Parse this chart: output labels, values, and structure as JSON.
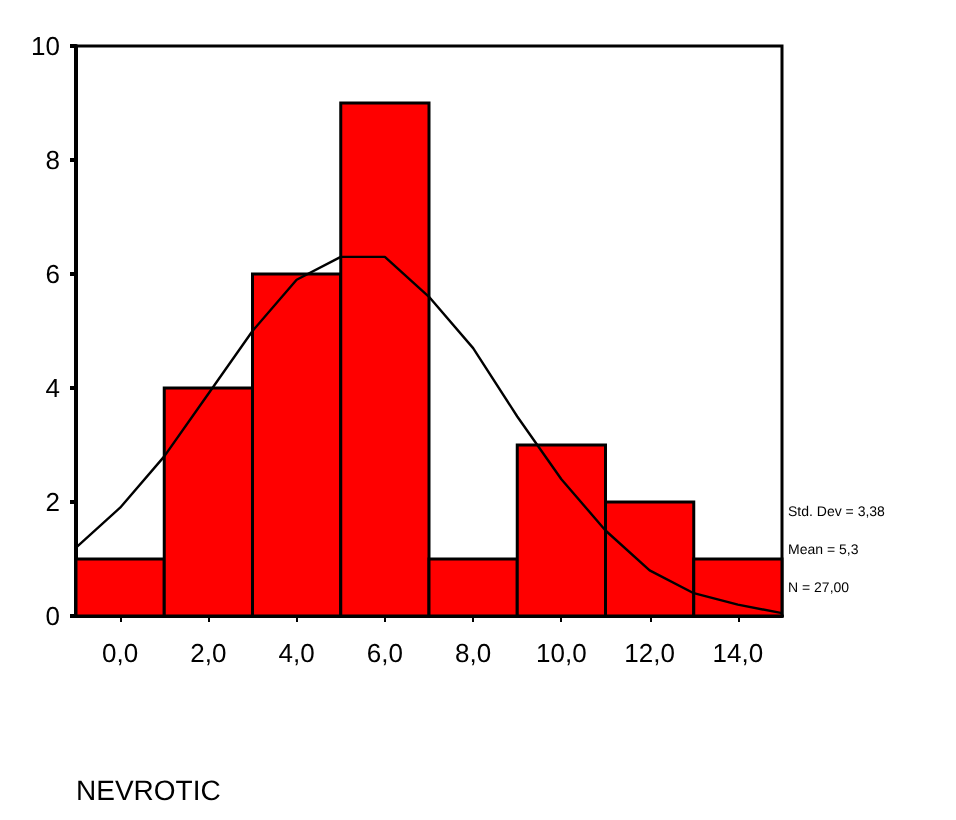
{
  "chart_data": {
    "type": "histogram",
    "xlabel": "NEVROTIC",
    "bins": [
      -1,
      1,
      3,
      5,
      7,
      9,
      11,
      13,
      15
    ],
    "values": [
      1,
      4,
      6,
      9,
      1,
      3,
      2,
      1
    ],
    "color": "#ff0000",
    "series": [
      {
        "type": "line",
        "color": "#000000",
        "x": [
          -1,
          0,
          1,
          2,
          3,
          4,
          5,
          6,
          7,
          8,
          9,
          10,
          11,
          12,
          13,
          14,
          15
        ],
        "values": [
          1.2,
          1.9,
          2.8,
          3.9,
          5.0,
          5.9,
          6.3,
          6.3,
          5.6,
          4.7,
          3.5,
          2.4,
          1.5,
          0.8,
          0.4,
          0.2,
          0.05
        ]
      }
    ],
    "marker": "none",
    "xlim": [
      -1,
      15
    ],
    "xticks": [
      {
        "value": 0,
        "label": "0,0"
      },
      {
        "value": 2,
        "label": "2,0"
      },
      {
        "value": 4,
        "label": "4,0"
      },
      {
        "value": 6,
        "label": "6,0"
      },
      {
        "value": 8,
        "label": "8,0"
      },
      {
        "value": 10,
        "label": "10,0"
      },
      {
        "value": 12,
        "label": "12,0"
      },
      {
        "value": 14,
        "label": "14,0"
      }
    ],
    "ylim": [
      0,
      10
    ],
    "yticks": [
      0,
      2,
      4,
      6,
      8,
      10
    ],
    "grid": false,
    "annotations": [
      "Std. Dev = 3,38",
      "Mean = 5,3",
      "N = 27,00"
    ]
  }
}
